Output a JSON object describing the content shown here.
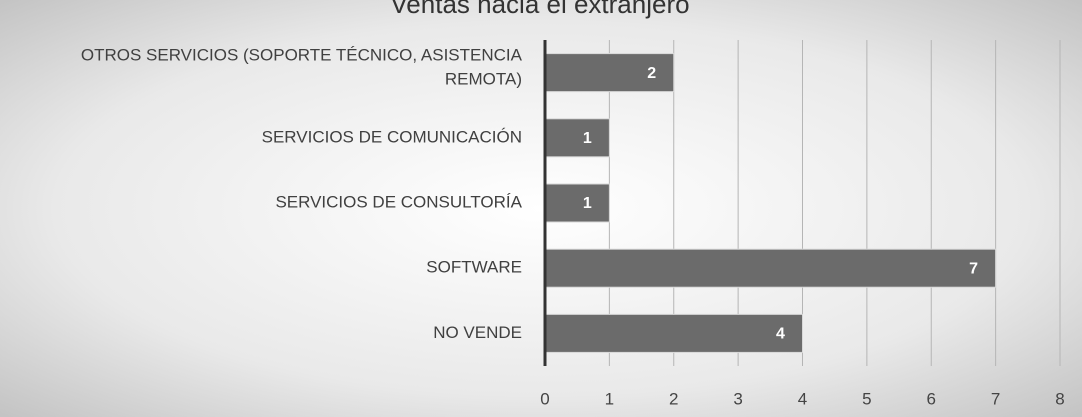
{
  "chart_data": {
    "type": "bar",
    "orientation": "horizontal",
    "title": "Ventas hacia el extranjero",
    "categories": [
      "OTROS SERVICIOS (SOPORTE TÉCNICO, ASISTENCIA REMOTA)",
      "SERVICIOS DE COMUNICACIÓN",
      "SERVICIOS DE CONSULTORÍA",
      "SOFTWARE",
      "NO VENDE"
    ],
    "values": [
      2,
      1,
      1,
      7,
      4
    ],
    "color": "#6b6b6b",
    "xlim": [
      0,
      8
    ],
    "xticks": [
      0,
      1,
      2,
      3,
      4,
      5,
      6,
      7,
      8
    ],
    "grid": true
  }
}
